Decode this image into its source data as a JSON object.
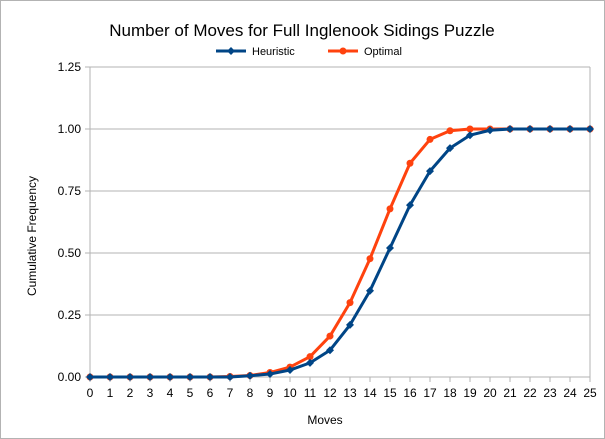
{
  "chart_data": {
    "type": "line",
    "title": "Number of Moves for Full Inglenook Sidings Puzzle",
    "xlabel": "Moves",
    "ylabel": "Cumulative Frequency",
    "x": [
      0,
      1,
      2,
      3,
      4,
      5,
      6,
      7,
      8,
      9,
      10,
      11,
      12,
      13,
      14,
      15,
      16,
      17,
      18,
      19,
      20,
      21,
      22,
      23,
      24,
      25
    ],
    "xlim": [
      0,
      25
    ],
    "ylim": [
      0,
      1.25
    ],
    "y_ticks": [
      "0.00",
      "0.25",
      "0.50",
      "0.75",
      "1.00",
      "1.25"
    ],
    "grid": "horizontal",
    "legend_position": "top",
    "series": [
      {
        "name": "Heuristic",
        "color": "#004586",
        "marker": "diamond",
        "values": [
          0,
          0,
          0,
          0,
          0,
          0,
          0,
          0,
          0.005,
          0.012,
          0.028,
          0.057,
          0.108,
          0.21,
          0.348,
          0.52,
          0.693,
          0.83,
          0.923,
          0.975,
          0.995,
          1,
          1,
          1,
          1,
          1
        ]
      },
      {
        "name": "Optimal",
        "color": "#ff420e",
        "marker": "circle",
        "values": [
          0,
          0,
          0,
          0,
          0,
          0,
          0,
          0.002,
          0.006,
          0.018,
          0.04,
          0.082,
          0.165,
          0.3,
          0.477,
          0.678,
          0.862,
          0.958,
          0.993,
          1,
          1,
          1,
          1,
          1,
          1,
          1
        ]
      }
    ]
  }
}
